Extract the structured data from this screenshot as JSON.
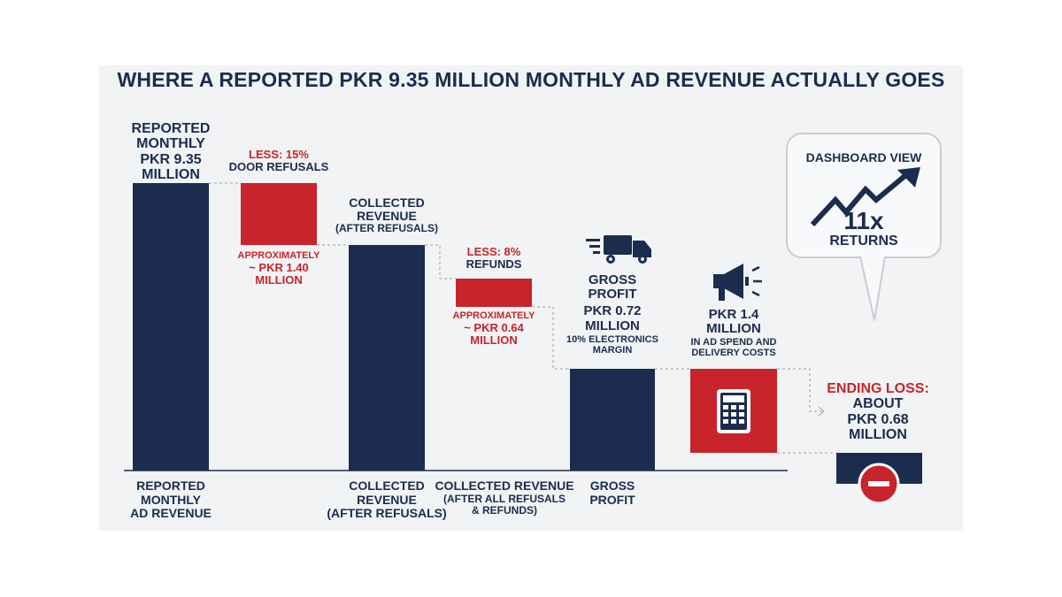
{
  "title": "WHERE A REPORTED PKR 9.35 MILLION MONTHLY AD REVENUE ACTUALLY GOES",
  "colors": {
    "navy": "#1b2c4e",
    "red": "#c8242b",
    "panel": "#f1f3f5"
  },
  "chart_data": {
    "type": "bar",
    "subtype": "waterfall",
    "unit": "PKR million",
    "bars": [
      {
        "kind": "total",
        "value": 9.35,
        "top_label": [
          "REPORTED",
          "MONTHLY",
          "PKR 9.35",
          "MILLION"
        ],
        "axis_label": [
          "REPORTED",
          "MONTHLY",
          "AD REVENUE"
        ]
      },
      {
        "kind": "decrease",
        "value": -1.4,
        "top_label": [
          "LESS: 15%",
          "DOOR REFUSALS"
        ],
        "bottom_label": [
          "APPROXIMATELY",
          "~ PKR 1.40",
          "MILLION"
        ]
      },
      {
        "kind": "subtotal",
        "value": 7.95,
        "top_label": [
          "COLLECTED",
          "REVENUE",
          "(AFTER REFUSALS)"
        ],
        "axis_label": [
          "COLLECTED",
          "REVENUE",
          "(AFTER REFUSALS)"
        ]
      },
      {
        "kind": "decrease",
        "value": -0.64,
        "top_label": [
          "LESS: 8%",
          "REFUNDS"
        ],
        "bottom_label": [
          "APPROXIMATELY",
          "~ PKR 0.64",
          "MILLION"
        ],
        "axis_label": [
          "COLLECTED REVENUE",
          "(AFTER ALL REFUSALS",
          "& REFUNDS)"
        ]
      },
      {
        "kind": "subtotal",
        "value": 0.72,
        "top_label": [
          "GROSS",
          "PROFIT",
          "PKR 0.72",
          "MILLION",
          "10% ELECTRONICS",
          "MARGIN"
        ],
        "axis_label": [
          "GROSS",
          "PROFIT"
        ],
        "icon": "delivery-truck-icon"
      },
      {
        "kind": "decrease",
        "value": -1.4,
        "top_label": [
          "PKR 1.4",
          "MILLION",
          "IN AD SPEND AND",
          "DELIVERY COSTS"
        ],
        "icon": "megaphone-icon",
        "inner_icon": "calculator-icon"
      },
      {
        "kind": "total",
        "value": -0.68,
        "top_label": [
          "ENDING LOSS:",
          "ABOUT",
          "PKR 0.68",
          "MILLION"
        ],
        "icon": "minus-circle-icon"
      }
    ]
  },
  "callout": {
    "heading": "DASHBOARD VIEW",
    "big": "11x",
    "sub": "RETURNS",
    "icon": "trend-up-arrow-icon"
  }
}
